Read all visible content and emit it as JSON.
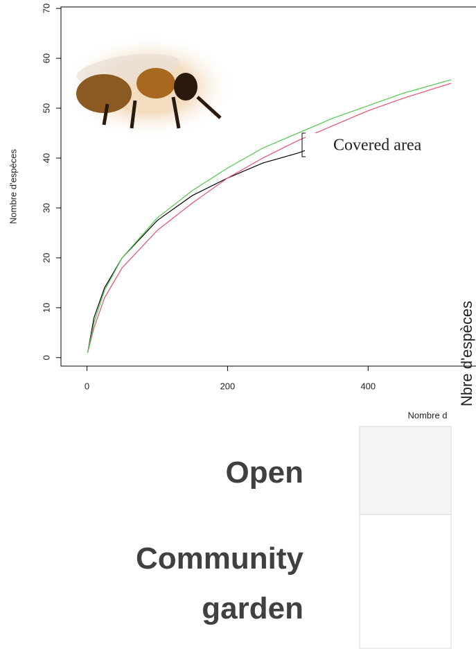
{
  "chart_data": {
    "type": "line",
    "y_label": "Nombre d'espèces",
    "x_label": "Nombre d",
    "annotation": "Covered area",
    "xlim": [
      -37,
      518
    ],
    "ylim": [
      -1.7,
      70.3
    ],
    "xticks": [
      0,
      200,
      400
    ],
    "yticks": [
      0,
      10,
      20,
      30,
      40,
      50,
      60,
      70
    ],
    "series": [
      {
        "color": "#000000",
        "x": [
          1,
          10,
          25,
          50,
          100,
          150,
          200,
          250,
          300,
          310
        ],
        "values": [
          1,
          8,
          14,
          20,
          27.5,
          32.5,
          36,
          39,
          41,
          41.5
        ]
      },
      {
        "color": "#e8506e",
        "x": [
          1,
          10,
          25,
          50,
          100,
          150,
          200,
          250,
          300,
          350,
          400,
          450,
          518
        ],
        "values": [
          1,
          6,
          12,
          18,
          25.5,
          31,
          36,
          40,
          43.5,
          46.5,
          49.5,
          52,
          55
        ]
      },
      {
        "color": "#4cc94c",
        "x": [
          1,
          10,
          25,
          50,
          100,
          150,
          200,
          250,
          300,
          350,
          400,
          450,
          518
        ],
        "values": [
          1,
          7,
          13.5,
          20,
          28,
          33.5,
          38,
          42,
          45,
          48,
          50.5,
          53,
          55.7
        ]
      }
    ]
  },
  "side_label": "Nbre d'espèces",
  "rows": [
    "Open",
    "Community garden"
  ]
}
